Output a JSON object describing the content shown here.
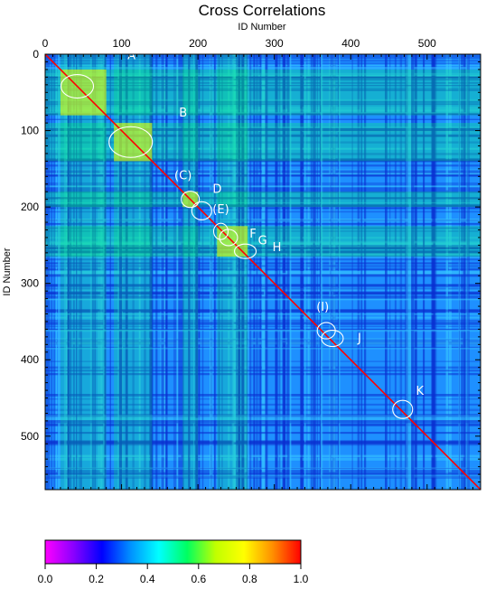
{
  "chart_data": {
    "type": "heatmap",
    "title": "Cross Correlations",
    "xlabel": "ID Number",
    "ylabel": "ID Number",
    "xlim": [
      0,
      570
    ],
    "ylim": [
      570,
      0
    ],
    "x_ticks": [
      0,
      100,
      200,
      300,
      400,
      500
    ],
    "y_ticks": [
      0,
      100,
      200,
      300,
      400,
      500
    ],
    "colorbar": {
      "range": [
        0.0,
        1.0
      ],
      "ticks": [
        "0.0",
        "0.2",
        "0.4",
        "0.6",
        "0.8",
        "1.0"
      ],
      "colors": [
        "#ff00ff",
        "#8a00ff",
        "#0000ff",
        "#0090ff",
        "#00ffff",
        "#00ff60",
        "#c0ff00",
        "#ffff00",
        "#ff9000",
        "#ff0000"
      ]
    },
    "diagonal_value": 1.0,
    "background_value_approx": 0.35,
    "highlight_bands": [
      {
        "from": 20,
        "to": 80,
        "value": 0.55
      },
      {
        "from": 90,
        "to": 140,
        "value": 0.6
      },
      {
        "from": 180,
        "to": 200,
        "value": 0.55
      },
      {
        "from": 225,
        "to": 265,
        "value": 0.6
      }
    ],
    "annotations": [
      {
        "label": "A",
        "id_x": 42,
        "id_y": 42
      },
      {
        "label": "B",
        "id_x": 112,
        "id_y": 115
      },
      {
        "label": "(C)",
        "id_x": 190,
        "id_y": 190
      },
      {
        "label": "D",
        "id_x": 205,
        "id_y": 205
      },
      {
        "label": "(E)",
        "id_x": 230,
        "id_y": 232
      },
      {
        "label": "F",
        "id_x": 240,
        "id_y": 240
      },
      {
        "label": "G",
        "id_x": 242,
        "id_y": 243
      },
      {
        "label": "H",
        "id_x": 262,
        "id_y": 258
      },
      {
        "label": "(I)",
        "id_x": 368,
        "id_y": 362
      },
      {
        "label": "J",
        "id_x": 376,
        "id_y": 372
      },
      {
        "label": "K",
        "id_x": 468,
        "id_y": 465
      }
    ]
  }
}
